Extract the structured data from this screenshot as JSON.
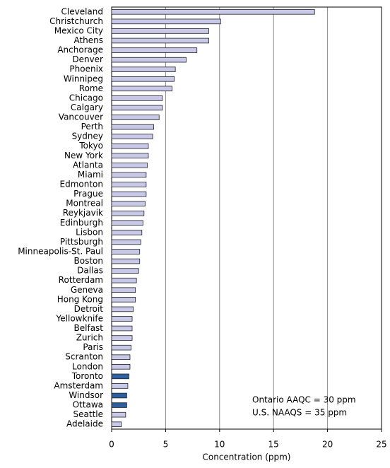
{
  "chart_data": {
    "type": "hbar",
    "x_label": "Concentration (ppm)",
    "annotations": [
      "Ontario AAQC = 30 ppm",
      "U.S. NAAQS = 35 ppm"
    ],
    "categories": [
      "Cleveland",
      "Christchurch",
      "Mexico City",
      "Athens",
      "Anchorage",
      "Denver",
      "Phoenix",
      "Winnipeg",
      "Rome",
      "Chicago",
      "Calgary",
      "Vancouver",
      "Perth",
      "Sydney",
      "Tokyo",
      "New York",
      "Atlanta",
      "Miami",
      "Edmonton",
      "Prague",
      "Montreal",
      "Reykjavik",
      "Edinburgh",
      "Lisbon",
      "Pittsburgh",
      "Minneapolis-St. Paul",
      "Boston",
      "Dallas",
      "Rotterdam",
      "Geneva",
      "Hong Kong",
      "Detroit",
      "Yellowknife",
      "Belfast",
      "Zurich",
      "Paris",
      "Scranton",
      "London",
      "Toronto",
      "Amsterdam",
      "Windsor",
      "Ottawa",
      "Seattle",
      "Adelaide"
    ],
    "values": [
      18.8,
      10.1,
      9.0,
      9.0,
      7.9,
      6.9,
      5.9,
      5.8,
      5.6,
      4.7,
      4.7,
      4.4,
      3.9,
      3.8,
      3.4,
      3.4,
      3.3,
      3.2,
      3.2,
      3.2,
      3.1,
      3.0,
      2.9,
      2.8,
      2.7,
      2.6,
      2.6,
      2.5,
      2.3,
      2.2,
      2.2,
      2.0,
      1.9,
      1.9,
      1.9,
      1.8,
      1.7,
      1.7,
      1.6,
      1.5,
      1.4,
      1.4,
      1.3,
      0.9
    ],
    "colors": [
      "#c8c8e8",
      "#c8c8e8",
      "#c8c8e8",
      "#c8c8e8",
      "#c8c8e8",
      "#c8c8e8",
      "#c8c8e8",
      "#c8c8e8",
      "#c8c8e8",
      "#c8c8e8",
      "#c8c8e8",
      "#c8c8e8",
      "#c8c8e8",
      "#c8c8e8",
      "#c8c8e8",
      "#c8c8e8",
      "#c8c8e8",
      "#c8c8e8",
      "#c8c8e8",
      "#c8c8e8",
      "#c8c8e8",
      "#c8c8e8",
      "#c8c8e8",
      "#c8c8e8",
      "#c8c8e8",
      "#c8c8e8",
      "#c8c8e8",
      "#c8c8e8",
      "#c8c8e8",
      "#c8c8e8",
      "#c8c8e8",
      "#c8c8e8",
      "#c8c8e8",
      "#c8c8e8",
      "#c8c8e8",
      "#c8c8e8",
      "#c8c8e8",
      "#c8c8e8",
      "#2e5f9e",
      "#c8c8e8",
      "#2e5f9e",
      "#2e5f9e",
      "#c8c8e8",
      "#c8c8e8"
    ],
    "xlim": [
      0,
      25
    ],
    "xticks": [
      0,
      5,
      10,
      15,
      20,
      25
    ],
    "grid": true
  }
}
